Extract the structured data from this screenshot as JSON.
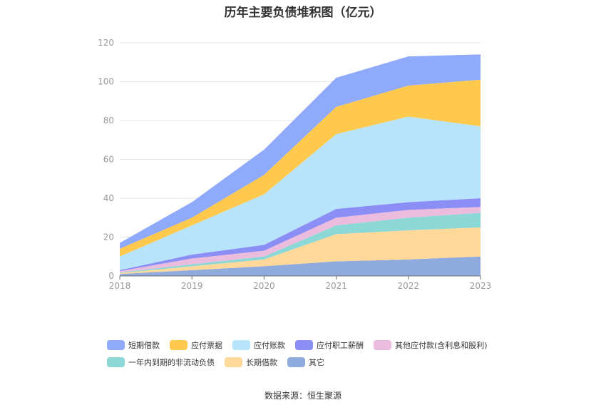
{
  "chart_data": {
    "type": "area",
    "title": "历年主要负债堆积图（亿元）",
    "x": [
      "2018",
      "2019",
      "2020",
      "2021",
      "2022",
      "2023"
    ],
    "ylim": [
      0,
      120
    ],
    "yticks": [
      0,
      20,
      40,
      60,
      80,
      100,
      120
    ],
    "stacked": true,
    "grid": true,
    "legend_position": "bottom",
    "series": [
      {
        "name": "其它",
        "color": "#8faadc",
        "values": [
          1.0,
          3.0,
          5.0,
          7.5,
          8.5,
          10.0
        ]
      },
      {
        "name": "长期借款",
        "color": "#ffd89a",
        "values": [
          0.5,
          2.0,
          3.5,
          14.0,
          15.0,
          15.0
        ]
      },
      {
        "name": "一年内到期的非流动负债",
        "color": "#8bd8d6",
        "values": [
          0.3,
          1.0,
          1.5,
          4.5,
          6.5,
          7.5
        ]
      },
      {
        "name": "其他应付款(含利息和股利)",
        "color": "#ebbcdd",
        "values": [
          0.7,
          3.0,
          3.0,
          4.0,
          4.0,
          3.0
        ]
      },
      {
        "name": "应付职工薪酬",
        "color": "#8a8ef5",
        "values": [
          0.5,
          2.0,
          3.0,
          4.5,
          4.0,
          4.5
        ]
      },
      {
        "name": "应付账款",
        "color": "#b8e4fb",
        "values": [
          7.0,
          15.0,
          26.0,
          38.5,
          44.0,
          37.0
        ]
      },
      {
        "name": "应付票据",
        "color": "#ffc94d",
        "values": [
          4.0,
          4.0,
          10.0,
          14.0,
          16.0,
          24.0
        ]
      },
      {
        "name": "短期借款",
        "color": "#8fa9fb",
        "values": [
          3.0,
          8.0,
          13.0,
          15.0,
          15.0,
          13.0
        ]
      }
    ]
  },
  "legend": [
    {
      "label": "短期借款",
      "color": "#8fa9fb"
    },
    {
      "label": "应付票据",
      "color": "#ffc94d"
    },
    {
      "label": "应付账款",
      "color": "#b8e4fb"
    },
    {
      "label": "应付职工薪酬",
      "color": "#8a8ef5"
    },
    {
      "label": "其他应付款(含利息和股利)",
      "color": "#ebbcdd"
    },
    {
      "label": "一年内到期的非流动负债",
      "color": "#8bd8d6"
    },
    {
      "label": "长期借款",
      "color": "#ffd89a"
    },
    {
      "label": "其它",
      "color": "#8faadc"
    }
  ],
  "source": "数据来源：恒生聚源"
}
